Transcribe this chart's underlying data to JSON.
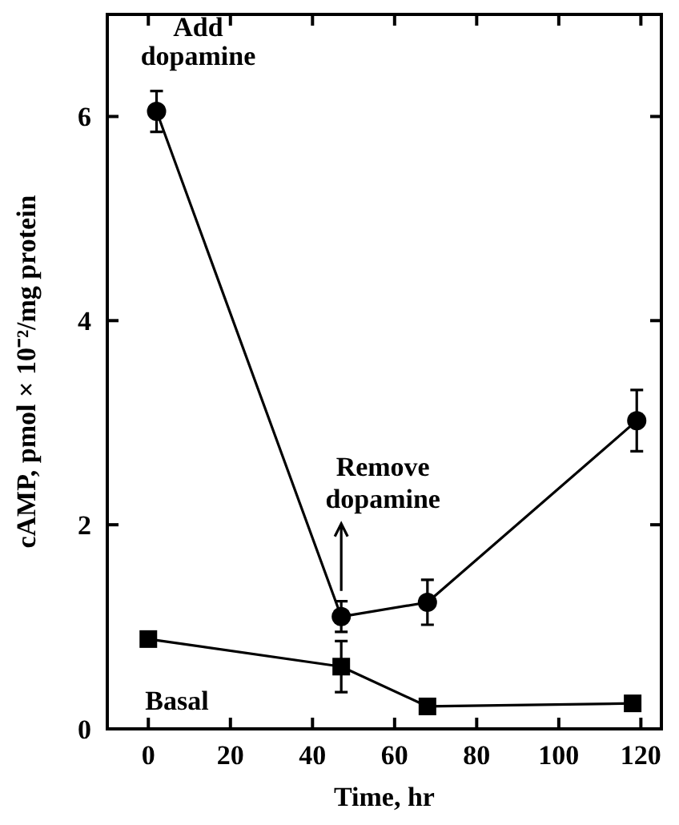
{
  "chart_data": {
    "type": "line",
    "xlabel": "Time, hr",
    "ylabel": "cAMP, pmol × 10⁻²/mg protein",
    "xlim": [
      -10,
      125
    ],
    "xticks": [
      0,
      20,
      40,
      60,
      80,
      100,
      120
    ],
    "ylim": [
      0,
      7
    ],
    "yticks": [
      0,
      2,
      4,
      6
    ],
    "line_style": "solid",
    "grid": false,
    "series": [
      {
        "color": "#000000",
        "marker": "circle",
        "x": [
          2,
          47,
          68,
          119
        ],
        "values": [
          6.05,
          1.1,
          1.24,
          3.02
        ],
        "errors": [
          0.2,
          0.15,
          0.22,
          0.3
        ]
      },
      {
        "name": "Basal",
        "color": "#000000",
        "marker": "square",
        "x": [
          0,
          47,
          68,
          118
        ],
        "values": [
          0.88,
          0.61,
          0.22,
          0.25
        ],
        "errors": [
          null,
          0.25,
          null,
          null
        ]
      }
    ],
    "annotations": [
      "Add dopamine",
      "Remove dopamine"
    ]
  }
}
